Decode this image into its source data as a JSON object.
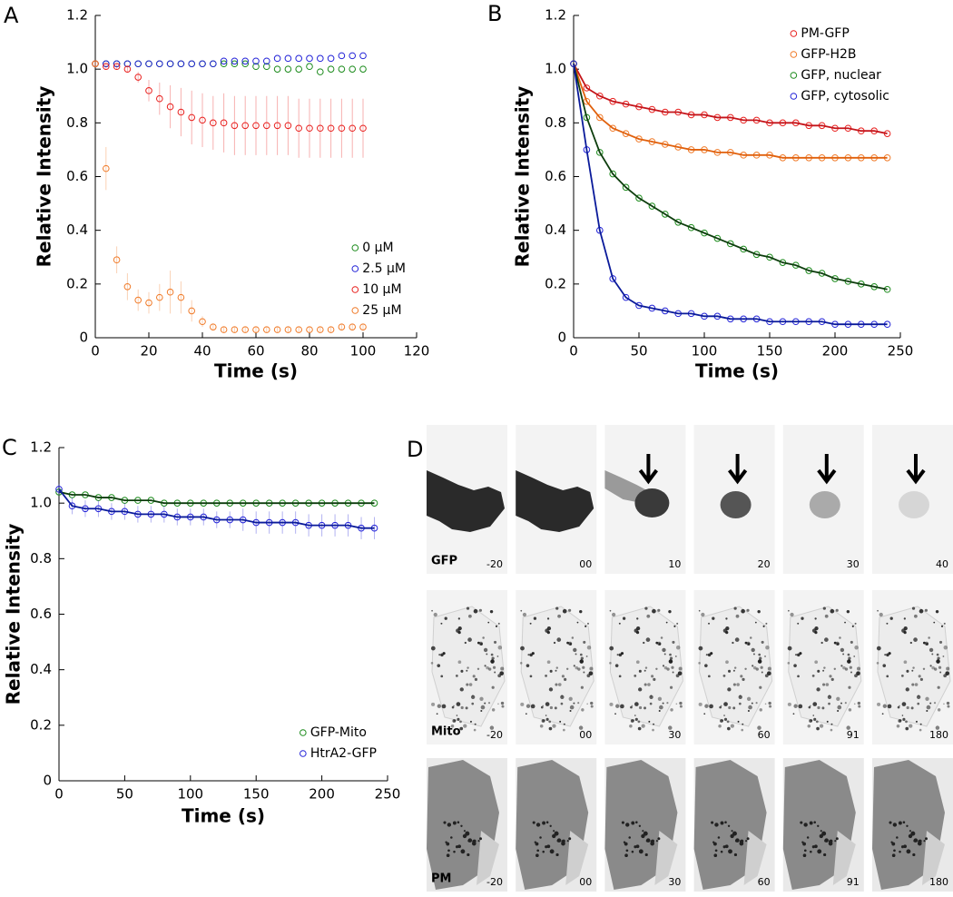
{
  "chart_data": [
    {
      "type": "scatter",
      "panel": "A",
      "xlabel": "Time (s)",
      "ylabel": "Relative Intensity",
      "x": [
        0,
        4,
        8,
        12,
        16,
        20,
        24,
        28,
        32,
        36,
        40,
        44,
        48,
        52,
        56,
        60,
        64,
        68,
        72,
        76,
        80,
        84,
        88,
        92,
        96,
        100
      ],
      "xlim": [
        0,
        120
      ],
      "xticks": [
        0,
        20,
        40,
        60,
        80,
        100,
        120
      ],
      "ylim": [
        0,
        1.2
      ],
      "yticks": [
        0,
        0.2,
        0.4,
        0.6,
        0.8,
        {
          "value": 1,
          "label": "1.0"
        },
        1.2
      ],
      "legend": "lower right",
      "series": [
        {
          "name": "0 µM",
          "color": "#1a8a1a",
          "values": [
            1.02,
            1.02,
            1.02,
            1.02,
            1.02,
            1.02,
            1.02,
            1.02,
            1.02,
            1.02,
            1.02,
            1.02,
            1.02,
            1.02,
            1.02,
            1.01,
            1.01,
            1.0,
            1.0,
            1.0,
            1.01,
            0.99,
            1.0,
            1.0,
            1.0,
            1.0
          ]
        },
        {
          "name": "2.5 µM",
          "color": "#2323d8",
          "values": [
            1.02,
            1.02,
            1.02,
            1.02,
            1.02,
            1.02,
            1.02,
            1.02,
            1.02,
            1.02,
            1.02,
            1.02,
            1.03,
            1.03,
            1.03,
            1.03,
            1.03,
            1.04,
            1.04,
            1.04,
            1.04,
            1.04,
            1.04,
            1.05,
            1.05,
            1.05
          ]
        },
        {
          "name": "10 µM",
          "color": "#e8201e",
          "values": [
            1.02,
            1.01,
            1.01,
            1.0,
            0.97,
            0.92,
            0.89,
            0.86,
            0.84,
            0.82,
            0.81,
            0.8,
            0.8,
            0.79,
            0.79,
            0.79,
            0.79,
            0.79,
            0.79,
            0.78,
            0.78,
            0.78,
            0.78,
            0.78,
            0.78,
            0.78
          ],
          "errors": [
            0.01,
            0.01,
            0.01,
            0.01,
            0.02,
            0.04,
            0.06,
            0.08,
            0.09,
            0.1,
            0.1,
            0.1,
            0.11,
            0.11,
            0.11,
            0.11,
            0.11,
            0.11,
            0.11,
            0.11,
            0.11,
            0.11,
            0.11,
            0.11,
            0.11,
            0.11
          ]
        },
        {
          "name": "25 µM",
          "color": "#f07a28",
          "values": [
            1.02,
            0.63,
            0.29,
            0.19,
            0.14,
            0.13,
            0.15,
            0.17,
            0.15,
            0.1,
            0.06,
            0.04,
            0.03,
            0.03,
            0.03,
            0.03,
            0.03,
            0.03,
            0.03,
            0.03,
            0.03,
            0.03,
            0.03,
            0.04,
            0.04,
            0.04
          ],
          "errors": [
            0.01,
            0.08,
            0.05,
            0.05,
            0.04,
            0.04,
            0.05,
            0.08,
            0.06,
            0.04,
            0.02,
            0.01,
            0.01,
            0.01,
            0.01,
            0.01,
            0.01,
            0.01,
            0.01,
            0.01,
            0.01,
            0.01,
            0.01,
            0.01,
            0.01,
            0.01
          ]
        }
      ]
    },
    {
      "type": "scatter",
      "panel": "B",
      "xlabel": "Time (s)",
      "ylabel": "Relative Intensity",
      "x": [
        0,
        10,
        20,
        30,
        40,
        50,
        60,
        70,
        80,
        90,
        100,
        110,
        120,
        130,
        140,
        150,
        160,
        170,
        180,
        190,
        200,
        210,
        220,
        230,
        240
      ],
      "xlim": [
        0,
        250
      ],
      "xticks": [
        0,
        50,
        100,
        150,
        200,
        250
      ],
      "ylim": [
        0,
        1.2
      ],
      "yticks": [
        0,
        0.2,
        0.4,
        0.6,
        0.8,
        {
          "value": 1,
          "label": "1.0"
        },
        1.2
      ],
      "legend": "upper right",
      "series": [
        {
          "name": "PM-GFP",
          "color": "#e8201e",
          "fit_color": "#c4141a",
          "values": [
            1.02,
            0.93,
            0.9,
            0.88,
            0.87,
            0.86,
            0.85,
            0.84,
            0.84,
            0.83,
            0.83,
            0.82,
            0.82,
            0.81,
            0.81,
            0.8,
            0.8,
            0.8,
            0.79,
            0.79,
            0.78,
            0.78,
            0.77,
            0.77,
            0.76
          ]
        },
        {
          "name": "GFP-H2B",
          "color": "#f07a28",
          "fit_color": "#e0600c",
          "values": [
            1.02,
            0.88,
            0.82,
            0.78,
            0.76,
            0.74,
            0.73,
            0.72,
            0.71,
            0.7,
            0.7,
            0.69,
            0.69,
            0.68,
            0.68,
            0.68,
            0.67,
            0.67,
            0.67,
            0.67,
            0.67,
            0.67,
            0.67,
            0.67,
            0.67
          ]
        },
        {
          "name": "GFP, nuclear",
          "color": "#1a8a1a",
          "fit_color": "#0d3d0d",
          "values": [
            1.02,
            0.82,
            0.69,
            0.61,
            0.56,
            0.52,
            0.49,
            0.46,
            0.43,
            0.41,
            0.39,
            0.37,
            0.35,
            0.33,
            0.31,
            0.3,
            0.28,
            0.27,
            0.25,
            0.24,
            0.22,
            0.21,
            0.2,
            0.19,
            0.18
          ]
        },
        {
          "name": "GFP, cytosolic",
          "color": "#2323d8",
          "fit_color": "#0a1a9a",
          "values": [
            1.02,
            0.7,
            0.4,
            0.22,
            0.15,
            0.12,
            0.11,
            0.1,
            0.09,
            0.09,
            0.08,
            0.08,
            0.07,
            0.07,
            0.07,
            0.06,
            0.06,
            0.06,
            0.06,
            0.06,
            0.05,
            0.05,
            0.05,
            0.05,
            0.05
          ]
        }
      ]
    },
    {
      "type": "scatter",
      "panel": "C",
      "xlabel": "Time (s)",
      "ylabel": "Relative Intensity",
      "x": [
        0,
        10,
        20,
        30,
        40,
        50,
        60,
        70,
        80,
        90,
        100,
        110,
        120,
        130,
        140,
        150,
        160,
        170,
        180,
        190,
        200,
        210,
        220,
        230,
        240
      ],
      "xlim": [
        0,
        250
      ],
      "xticks": [
        0,
        50,
        100,
        150,
        200,
        250
      ],
      "ylim": [
        0,
        1.2
      ],
      "yticks": [
        0,
        0.2,
        0.4,
        0.6,
        0.8,
        {
          "value": 1,
          "label": "1.0"
        },
        1.2
      ],
      "legend": "lower right",
      "series": [
        {
          "name": "GFP-Mito",
          "color": "#1a8a1a",
          "fit_color": "#0d3d0d",
          "values": [
            1.04,
            1.03,
            1.03,
            1.02,
            1.02,
            1.01,
            1.01,
            1.01,
            1.0,
            1.0,
            1.0,
            1.0,
            1.0,
            1.0,
            1.0,
            1.0,
            1.0,
            1.0,
            1.0,
            1.0,
            1.0,
            1.0,
            1.0,
            1.0,
            1.0
          ]
        },
        {
          "name": "HtrA2-GFP",
          "color": "#2323d8",
          "fit_color": "#0a1a9a",
          "values": [
            1.05,
            0.99,
            0.98,
            0.98,
            0.97,
            0.97,
            0.96,
            0.96,
            0.96,
            0.95,
            0.95,
            0.95,
            0.94,
            0.94,
            0.94,
            0.93,
            0.93,
            0.93,
            0.93,
            0.92,
            0.92,
            0.92,
            0.92,
            0.91,
            0.91
          ],
          "errors": [
            0.02,
            0.03,
            0.03,
            0.03,
            0.03,
            0.03,
            0.03,
            0.03,
            0.03,
            0.03,
            0.03,
            0.03,
            0.03,
            0.03,
            0.04,
            0.04,
            0.04,
            0.04,
            0.04,
            0.04,
            0.04,
            0.04,
            0.04,
            0.04,
            0.04
          ]
        }
      ]
    }
  ],
  "panel_d": {
    "label": "D",
    "rows": [
      {
        "name": "GFP",
        "times": [
          "-20",
          "00",
          "10",
          "20",
          "30",
          "40"
        ]
      },
      {
        "name": "Mito",
        "times": [
          "-20",
          "00",
          "30",
          "60",
          "91",
          "180"
        ]
      },
      {
        "name": "PM",
        "times": [
          "-20",
          "00",
          "30",
          "60",
          "91",
          "180"
        ]
      }
    ]
  }
}
